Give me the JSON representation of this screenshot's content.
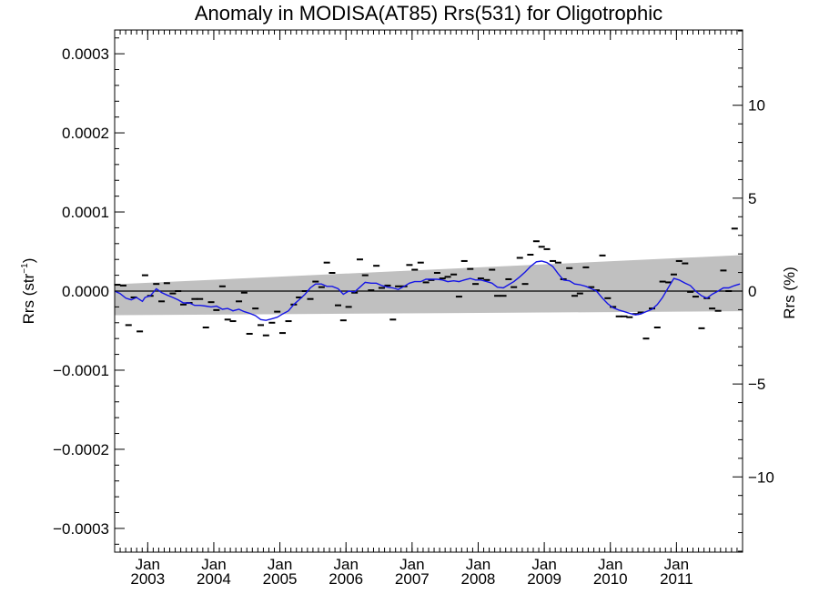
{
  "chart_data": {
    "type": "line",
    "title": "Anomaly in MODISA(AT85) Rrs(531) for Oligotrophic",
    "ylabel_left": {
      "text": "Rrs (str",
      "sup": "−1",
      "close": ")"
    },
    "ylabel_right": "Rrs (%)",
    "xlim": [
      2002.5,
      2012.0
    ],
    "ylim": [
      -0.00033,
      0.00033
    ],
    "right_axis_range": [
      -14.05,
      14.05
    ],
    "left_ticks": [
      {
        "v": 0.0003,
        "label": "0.0003"
      },
      {
        "v": 0.0002,
        "label": "0.0002"
      },
      {
        "v": 0.0001,
        "label": "0.0001"
      },
      {
        "v": 0.0,
        "label": "0.0000"
      },
      {
        "v": -0.0001,
        "label": "−0.0001"
      },
      {
        "v": -0.0002,
        "label": "−0.0002"
      },
      {
        "v": -0.0003,
        "label": "−0.0003"
      }
    ],
    "right_ticks": [
      {
        "v": 10,
        "label": "10"
      },
      {
        "v": 5,
        "label": "5"
      },
      {
        "v": 0,
        "label": "0"
      },
      {
        "v": -5,
        "label": "−5"
      },
      {
        "v": -10,
        "label": "−10"
      }
    ],
    "x_ticks": [
      {
        "v": 2003.0,
        "month": "Jan",
        "year": "2003"
      },
      {
        "v": 2004.0,
        "month": "Jan",
        "year": "2004"
      },
      {
        "v": 2005.0,
        "month": "Jan",
        "year": "2005"
      },
      {
        "v": 2006.0,
        "month": "Jan",
        "year": "2006"
      },
      {
        "v": 2007.0,
        "month": "Jan",
        "year": "2007"
      },
      {
        "v": 2008.0,
        "month": "Jan",
        "year": "2008"
      },
      {
        "v": 2009.0,
        "month": "Jan",
        "year": "2009"
      },
      {
        "v": 2010.0,
        "month": "Jan",
        "year": "2010"
      },
      {
        "v": 2011.0,
        "month": "Jan",
        "year": "2011"
      }
    ],
    "band": {
      "color": "#c0c0c0",
      "upper": [
        [
          2002.5,
          8.5e-06
        ],
        [
          2012.0,
          4.55e-05
        ]
      ],
      "lower": [
        [
          2002.5,
          -3.05e-05
        ],
        [
          2012.0,
          -2.55e-05
        ]
      ]
    },
    "zero_line_color": "#000000",
    "series": [
      {
        "kind": "monthly",
        "color": "#000000",
        "points": [
          [
            2002.54,
            8e-06
          ],
          [
            2002.63,
            7e-06
          ],
          [
            2002.71,
            -4.3e-05
          ],
          [
            2002.79,
            -8e-06
          ],
          [
            2002.88,
            -5.1e-05
          ],
          [
            2002.96,
            2e-05
          ],
          [
            2003.04,
            -6e-06
          ],
          [
            2003.13,
            9e-06
          ],
          [
            2003.21,
            -1.3e-05
          ],
          [
            2003.29,
            1e-05
          ],
          [
            2003.38,
            -3e-06
          ],
          [
            2003.46,
            0.0
          ],
          [
            2003.54,
            -1.7e-05
          ],
          [
            2003.63,
            -1.5e-05
          ],
          [
            2003.71,
            -1e-05
          ],
          [
            2003.79,
            -1e-05
          ],
          [
            2003.88,
            -4.6e-05
          ],
          [
            2003.96,
            -1.4e-05
          ],
          [
            2004.04,
            -2.4e-05
          ],
          [
            2004.13,
            6e-06
          ],
          [
            2004.21,
            -3.6e-05
          ],
          [
            2004.29,
            -3.8e-05
          ],
          [
            2004.38,
            -1.3e-05
          ],
          [
            2004.46,
            -2e-06
          ],
          [
            2004.54,
            -5.4e-05
          ],
          [
            2004.63,
            -2.2e-05
          ],
          [
            2004.71,
            -4.3e-05
          ],
          [
            2004.79,
            -5.6e-05
          ],
          [
            2004.88,
            -4e-05
          ],
          [
            2004.96,
            -2.6e-05
          ],
          [
            2005.04,
            -5.3e-05
          ],
          [
            2005.13,
            -3.8e-05
          ],
          [
            2005.21,
            -1.7e-05
          ],
          [
            2005.29,
            -8e-06
          ],
          [
            2005.38,
            0.0
          ],
          [
            2005.46,
            -1e-05
          ],
          [
            2005.54,
            1.2e-05
          ],
          [
            2005.63,
            5e-06
          ],
          [
            2005.71,
            3.6e-05
          ],
          [
            2005.79,
            2.3e-05
          ],
          [
            2005.88,
            -1.8e-05
          ],
          [
            2005.96,
            -3.7e-05
          ],
          [
            2006.04,
            -2e-05
          ],
          [
            2006.13,
            -2e-06
          ],
          [
            2006.21,
            4e-05
          ],
          [
            2006.29,
            2e-05
          ],
          [
            2006.38,
            1e-06
          ],
          [
            2006.46,
            3.2e-05
          ],
          [
            2006.54,
            4e-06
          ],
          [
            2006.63,
            7e-06
          ],
          [
            2006.71,
            -3.6e-05
          ],
          [
            2006.79,
            6e-06
          ],
          [
            2006.88,
            6e-06
          ],
          [
            2006.96,
            3.3e-05
          ],
          [
            2007.04,
            2.7e-05
          ],
          [
            2007.13,
            3.6e-05
          ],
          [
            2007.21,
            1.1e-05
          ],
          [
            2007.29,
            1.4e-05
          ],
          [
            2007.38,
            2.3e-05
          ],
          [
            2007.46,
            1.6e-05
          ],
          [
            2007.54,
            1.8e-05
          ],
          [
            2007.63,
            2.1e-05
          ],
          [
            2007.71,
            -7e-06
          ],
          [
            2007.79,
            3.8e-05
          ],
          [
            2007.88,
            2.8e-05
          ],
          [
            2007.96,
            9e-06
          ],
          [
            2008.04,
            1.6e-05
          ],
          [
            2008.13,
            1.4e-05
          ],
          [
            2008.21,
            2.7e-05
          ],
          [
            2008.29,
            -6e-06
          ],
          [
            2008.38,
            -6e-06
          ],
          [
            2008.46,
            1.5e-05
          ],
          [
            2008.54,
            5e-06
          ],
          [
            2008.63,
            4.2e-05
          ],
          [
            2008.71,
            9e-06
          ],
          [
            2008.79,
            4.6e-05
          ],
          [
            2008.88,
            6.3e-05
          ],
          [
            2008.96,
            5.6e-05
          ],
          [
            2009.04,
            5.3e-05
          ],
          [
            2009.13,
            3.8e-05
          ],
          [
            2009.21,
            3.6e-05
          ],
          [
            2009.29,
            1.5e-05
          ],
          [
            2009.38,
            2.9e-05
          ],
          [
            2009.46,
            -6e-06
          ],
          [
            2009.54,
            -3e-06
          ],
          [
            2009.63,
            3e-05
          ],
          [
            2009.71,
            5e-06
          ],
          [
            2009.79,
            1e-06
          ],
          [
            2009.88,
            4.5e-05
          ],
          [
            2009.96,
            -9e-06
          ],
          [
            2010.04,
            -2e-05
          ],
          [
            2010.13,
            -3.2e-05
          ],
          [
            2010.21,
            -3.2e-05
          ],
          [
            2010.29,
            -3.3e-05
          ],
          [
            2010.38,
            -2.9e-05
          ],
          [
            2010.46,
            -2.7e-05
          ],
          [
            2010.54,
            -6e-05
          ],
          [
            2010.63,
            -2.2e-05
          ],
          [
            2010.71,
            -4.6e-05
          ],
          [
            2010.79,
            1.2e-05
          ],
          [
            2010.88,
            1.1e-05
          ],
          [
            2010.96,
            2.1e-05
          ],
          [
            2011.04,
            3.8e-05
          ],
          [
            2011.13,
            3.5e-05
          ],
          [
            2011.21,
            -1e-06
          ],
          [
            2011.29,
            -7e-06
          ],
          [
            2011.38,
            -4.7e-05
          ],
          [
            2011.46,
            -9e-06
          ],
          [
            2011.54,
            -2.2e-05
          ],
          [
            2011.63,
            -2.5e-05
          ],
          [
            2011.71,
            2.6e-05
          ],
          [
            2011.79,
            0.0
          ],
          [
            2011.88,
            7.9e-05
          ]
        ]
      },
      {
        "kind": "running_mean",
        "color": "#1515e6",
        "points": [
          [
            2002.5,
            0.0
          ],
          [
            2002.58,
            -3e-06
          ],
          [
            2002.67,
            -9e-06
          ],
          [
            2002.75,
            -1.1e-05
          ],
          [
            2002.83,
            -8e-06
          ],
          [
            2002.92,
            -1.3e-05
          ],
          [
            2002.96,
            -8e-06
          ],
          [
            2003.04,
            -6e-06
          ],
          [
            2003.13,
            3e-06
          ],
          [
            2003.21,
            -2e-06
          ],
          [
            2003.29,
            -5e-06
          ],
          [
            2003.38,
            -8e-06
          ],
          [
            2003.46,
            -1.1e-05
          ],
          [
            2003.54,
            -1.5e-05
          ],
          [
            2003.63,
            -1.5e-05
          ],
          [
            2003.71,
            -1.8e-05
          ],
          [
            2003.79,
            -1.8e-05
          ],
          [
            2003.88,
            -1.9e-05
          ],
          [
            2003.96,
            -2e-05
          ],
          [
            2004.04,
            -1.9e-05
          ],
          [
            2004.13,
            -2.3e-05
          ],
          [
            2004.21,
            -2.2e-05
          ],
          [
            2004.29,
            -2.5e-05
          ],
          [
            2004.38,
            -2.3e-05
          ],
          [
            2004.46,
            -2.6e-05
          ],
          [
            2004.54,
            -2.8e-05
          ],
          [
            2004.63,
            -3.1e-05
          ],
          [
            2004.71,
            -3.6e-05
          ],
          [
            2004.79,
            -3.7e-05
          ],
          [
            2004.88,
            -3.5e-05
          ],
          [
            2004.96,
            -3.3e-05
          ],
          [
            2005.04,
            -2.9e-05
          ],
          [
            2005.13,
            -2.5e-05
          ],
          [
            2005.21,
            -1.7e-05
          ],
          [
            2005.29,
            -1.1e-05
          ],
          [
            2005.38,
            -4e-06
          ],
          [
            2005.46,
            4e-06
          ],
          [
            2005.54,
            9e-06
          ],
          [
            2005.63,
            9e-06
          ],
          [
            2005.71,
            6e-06
          ],
          [
            2005.79,
            6e-06
          ],
          [
            2005.88,
            3e-06
          ],
          [
            2005.96,
            -4e-06
          ],
          [
            2006.04,
            0.0
          ],
          [
            2006.13,
            -1e-06
          ],
          [
            2006.21,
            5e-06
          ],
          [
            2006.29,
            1.1e-05
          ],
          [
            2006.38,
            1e-05
          ],
          [
            2006.46,
            1e-05
          ],
          [
            2006.54,
            7e-06
          ],
          [
            2006.63,
            5e-06
          ],
          [
            2006.71,
            4e-06
          ],
          [
            2006.79,
            2e-06
          ],
          [
            2006.88,
            6e-06
          ],
          [
            2006.96,
            1e-05
          ],
          [
            2007.04,
            1.2e-05
          ],
          [
            2007.13,
            1.2e-05
          ],
          [
            2007.21,
            1.5e-05
          ],
          [
            2007.29,
            1.5e-05
          ],
          [
            2007.38,
            1.5e-05
          ],
          [
            2007.46,
            1.4e-05
          ],
          [
            2007.54,
            1.2e-05
          ],
          [
            2007.63,
            1.3e-05
          ],
          [
            2007.71,
            1.2e-05
          ],
          [
            2007.79,
            1.4e-05
          ],
          [
            2007.88,
            1.6e-05
          ],
          [
            2007.96,
            1.4e-05
          ],
          [
            2008.04,
            1.4e-05
          ],
          [
            2008.13,
            1.2e-05
          ],
          [
            2008.21,
            1e-05
          ],
          [
            2008.29,
            5e-06
          ],
          [
            2008.38,
            4e-06
          ],
          [
            2008.46,
            8e-06
          ],
          [
            2008.54,
            1.2e-05
          ],
          [
            2008.63,
            1.8e-05
          ],
          [
            2008.71,
            2.4e-05
          ],
          [
            2008.79,
            3.1e-05
          ],
          [
            2008.88,
            3.7e-05
          ],
          [
            2008.96,
            3.8e-05
          ],
          [
            2009.04,
            3.6e-05
          ],
          [
            2009.13,
            3.1e-05
          ],
          [
            2009.21,
            2.2e-05
          ],
          [
            2009.29,
            1.4e-05
          ],
          [
            2009.38,
            1.3e-05
          ],
          [
            2009.46,
            9e-06
          ],
          [
            2009.54,
            8e-06
          ],
          [
            2009.63,
            6e-06
          ],
          [
            2009.71,
            3e-06
          ],
          [
            2009.79,
            0.0
          ],
          [
            2009.88,
            -9e-06
          ],
          [
            2009.96,
            -1.6e-05
          ],
          [
            2010.04,
            -2.1e-05
          ],
          [
            2010.13,
            -2.4e-05
          ],
          [
            2010.21,
            -2.6e-05
          ],
          [
            2010.29,
            -2.8e-05
          ],
          [
            2010.38,
            -3e-05
          ],
          [
            2010.46,
            -2.9e-05
          ],
          [
            2010.54,
            -2.6e-05
          ],
          [
            2010.63,
            -2.3e-05
          ],
          [
            2010.71,
            -1.7e-05
          ],
          [
            2010.79,
            -8e-06
          ],
          [
            2010.88,
            5e-06
          ],
          [
            2010.96,
            1.6e-05
          ],
          [
            2011.04,
            1.4e-05
          ],
          [
            2011.13,
            1e-05
          ],
          [
            2011.21,
            7e-06
          ],
          [
            2011.29,
            0.0
          ],
          [
            2011.38,
            -6e-06
          ],
          [
            2011.46,
            -9e-06
          ],
          [
            2011.54,
            -4e-06
          ],
          [
            2011.63,
            0.0
          ],
          [
            2011.71,
            4e-06
          ],
          [
            2011.79,
            4e-06
          ],
          [
            2011.88,
            7e-06
          ],
          [
            2011.96,
            9e-06
          ]
        ]
      }
    ]
  }
}
